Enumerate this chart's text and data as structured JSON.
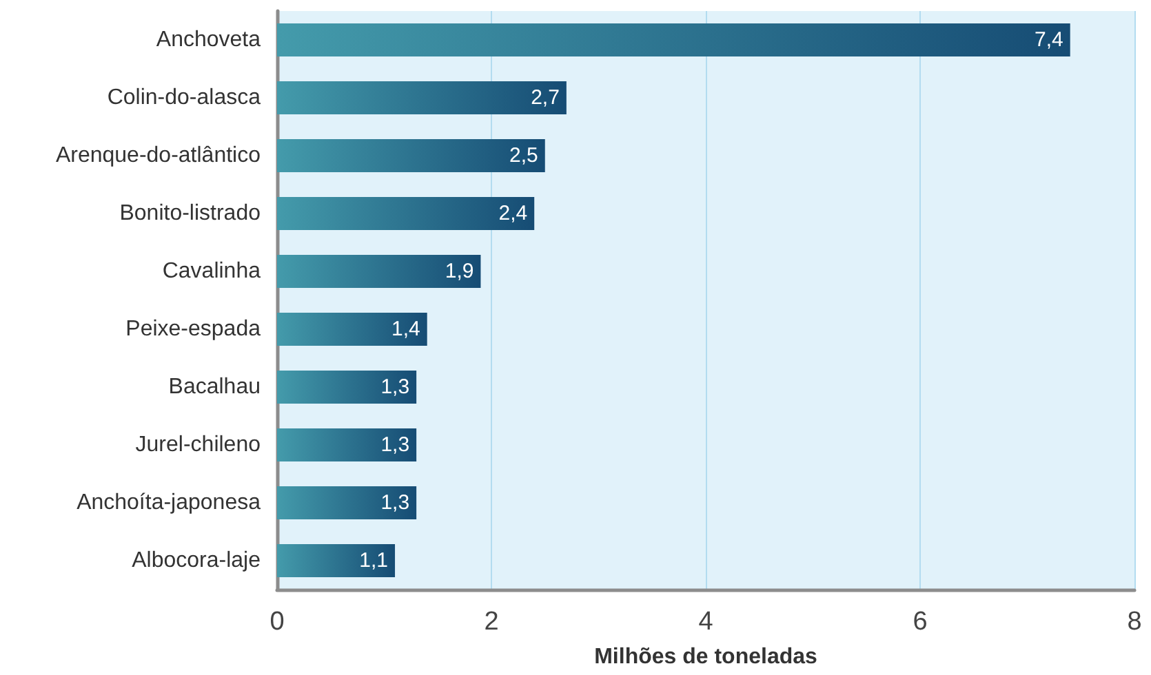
{
  "chart_data": {
    "type": "bar",
    "orientation": "horizontal",
    "categories": [
      "Anchoveta",
      "Colin-do-alasca",
      "Arenque-do-atlântico",
      "Bonito-listrado",
      "Cavalinha",
      "Peixe-espada",
      "Bacalhau",
      "Jurel-chileno",
      "Anchoíta-japonesa",
      "Albocora-laje"
    ],
    "values": [
      7.4,
      2.7,
      2.5,
      2.4,
      1.9,
      1.4,
      1.3,
      1.3,
      1.3,
      1.1
    ],
    "value_labels": [
      "7,4",
      "2,7",
      "2,5",
      "2,4",
      "1,9",
      "1,4",
      "1,3",
      "1,3",
      "1,3",
      "1,1"
    ],
    "color": "#164c74",
    "xlabel": "Milhões de toneladas",
    "xlim": [
      0,
      8
    ],
    "xticks": [
      0,
      2,
      4,
      6,
      8
    ],
    "grid": "x"
  }
}
